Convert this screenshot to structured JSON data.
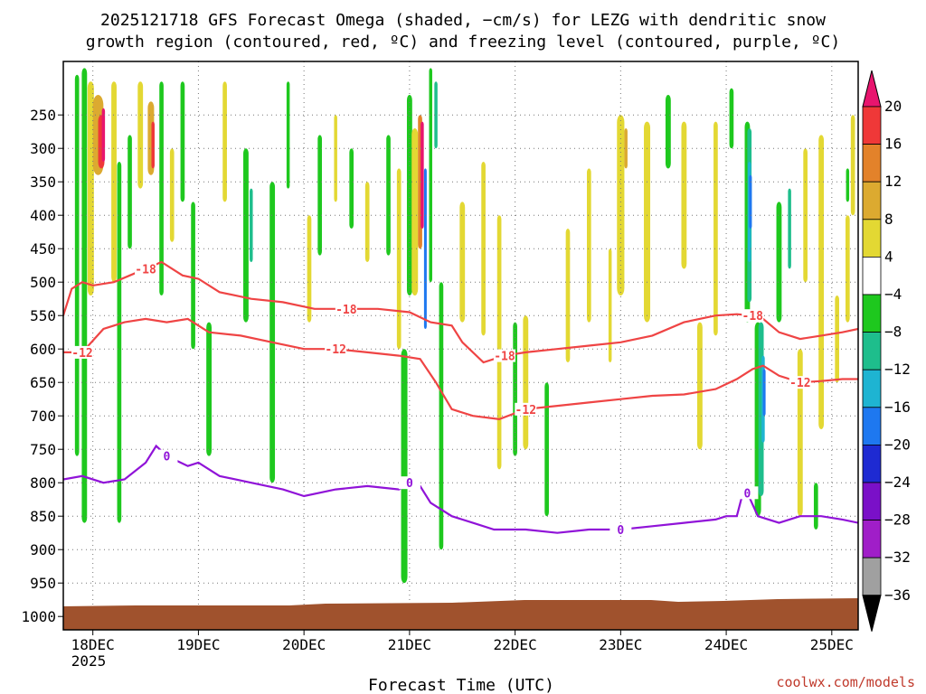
{
  "chart_data": {
    "type": "heatmap",
    "title_line1": "2025121718 GFS Forecast Omega (shaded, −cm/s) for LEZG with dendritic snow",
    "title_line2": "growth region (contoured, red, ºC) and freezing level (contoured, purple, ºC)",
    "xlabel": "Forecast Time (UTC)",
    "x_ticks": [
      "18DEC",
      "19DEC",
      "20DEC",
      "21DEC",
      "22DEC",
      "23DEC",
      "24DEC",
      "25DEC"
    ],
    "x_year": "2025",
    "x_range_days": [
      17.72,
      25.25
    ],
    "y_ticks": [
      "250",
      "300",
      "350",
      "400",
      "450",
      "500",
      "550",
      "600",
      "650",
      "700",
      "750",
      "800",
      "850",
      "900",
      "950",
      "1000"
    ],
    "ylim_hpa": [
      1020,
      170
    ],
    "colorbar": {
      "labels": [
        "20",
        "16",
        "12",
        "8",
        "4",
        "−4",
        "−8",
        "−12",
        "−16",
        "−20",
        "−24",
        "−28",
        "−32",
        "−36"
      ],
      "colors": [
        "#e8156e",
        "#ef3838",
        "#e3822a",
        "#dcaa30",
        "#e3d833",
        "#ffffff",
        "#1ec81e",
        "#1ebe8c",
        "#1eb4d2",
        "#1e78f0",
        "#1e2ad2",
        "#7a10c8",
        "#a01ec8",
        "#a0a0a0",
        "#000000"
      ]
    },
    "contours": [
      {
        "label": "-18",
        "color": "#ef4444",
        "x": [
          17.72,
          17.8,
          17.9,
          18.0,
          18.2,
          18.35,
          18.5,
          18.65,
          18.85,
          19.0,
          19.2,
          19.5,
          19.8,
          20.1,
          20.4,
          20.7,
          21.0,
          21.2,
          21.4,
          21.5,
          21.7,
          21.9,
          22.1,
          22.4,
          22.7,
          23.0,
          23.3,
          23.6,
          23.9,
          24.1,
          24.25,
          24.35,
          24.5,
          24.7,
          24.9,
          25.1,
          25.25
        ],
        "y": [
          550,
          510,
          500,
          505,
          500,
          490,
          480,
          470,
          490,
          495,
          515,
          525,
          530,
          540,
          540,
          540,
          545,
          560,
          565,
          590,
          620,
          610,
          605,
          600,
          595,
          590,
          580,
          560,
          550,
          548,
          550,
          555,
          575,
          585,
          580,
          575,
          570
        ]
      },
      {
        "label": "-12",
        "color": "#ef4444",
        "x": [
          17.72,
          17.9,
          18.1,
          18.3,
          18.5,
          18.7,
          18.9,
          19.1,
          19.4,
          19.7,
          20.0,
          20.3,
          20.6,
          20.9,
          21.1,
          21.25,
          21.4,
          21.6,
          21.85,
          22.1,
          22.4,
          22.7,
          23.0,
          23.3,
          23.6,
          23.9,
          24.1,
          24.25,
          24.35,
          24.5,
          24.7,
          24.9,
          25.1,
          25.25
        ],
        "y": [
          605,
          605,
          570,
          560,
          555,
          560,
          555,
          575,
          580,
          590,
          600,
          600,
          605,
          610,
          615,
          650,
          690,
          700,
          705,
          690,
          685,
          680,
          675,
          670,
          668,
          660,
          645,
          630,
          625,
          640,
          650,
          648,
          645,
          645
        ]
      },
      {
        "label": "0",
        "color": "#9013d8",
        "x": [
          17.72,
          17.9,
          18.1,
          18.3,
          18.5,
          18.6,
          18.7,
          18.9,
          19.0,
          19.2,
          19.5,
          19.8,
          20.0,
          20.3,
          20.6,
          20.9,
          21.0,
          21.1,
          21.2,
          21.4,
          21.6,
          21.8,
          22.1,
          22.4,
          22.7,
          23.0,
          23.3,
          23.6,
          23.9,
          24.0,
          24.1,
          24.15,
          24.2,
          24.3,
          24.5,
          24.7,
          24.9,
          25.1,
          25.25
        ],
        "y": [
          795,
          790,
          800,
          795,
          770,
          745,
          760,
          775,
          770,
          790,
          800,
          810,
          820,
          810,
          805,
          810,
          800,
          805,
          830,
          850,
          860,
          870,
          870,
          875,
          870,
          870,
          865,
          860,
          855,
          850,
          850,
          820,
          815,
          850,
          860,
          850,
          850,
          855,
          860
        ]
      }
    ]
  }
}
